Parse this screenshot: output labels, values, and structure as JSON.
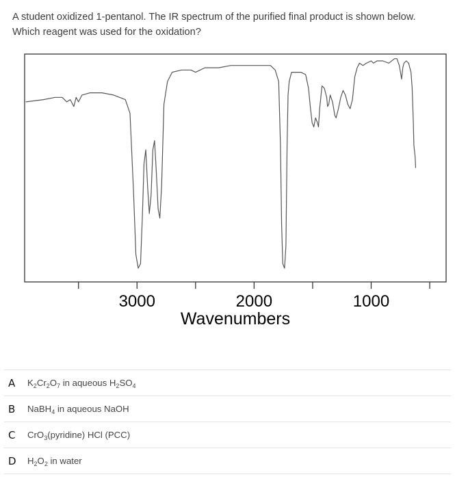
{
  "question": {
    "line1": "A student oxidized 1-pentanol. The IR spectrum of the purified final product is shown below.",
    "line2": "Which reagent was used for the oxidation?"
  },
  "options": [
    {
      "letter": "A",
      "parts": [
        [
          "K",
          ""
        ],
        [
          "2",
          "sub"
        ],
        [
          "Cr",
          ""
        ],
        [
          "2",
          "sub"
        ],
        [
          "O",
          ""
        ],
        [
          "7",
          "sub"
        ],
        [
          " in aqueous H",
          ""
        ],
        [
          "2",
          "sub"
        ],
        [
          "SO",
          ""
        ],
        [
          "4",
          "sub"
        ]
      ]
    },
    {
      "letter": "B",
      "parts": [
        [
          "NaBH",
          ""
        ],
        [
          "4",
          "sub"
        ],
        [
          " in aqueous NaOH",
          ""
        ]
      ]
    },
    {
      "letter": "C",
      "parts": [
        [
          "CrO",
          ""
        ],
        [
          "3",
          "sub"
        ],
        [
          "(pyridine) HCl (PCC)",
          ""
        ]
      ]
    },
    {
      "letter": "D",
      "parts": [
        [
          "H",
          ""
        ],
        [
          "2",
          "sub"
        ],
        [
          "O",
          ""
        ],
        [
          "2",
          "sub"
        ],
        [
          " in water",
          ""
        ]
      ]
    }
  ],
  "chart_data": {
    "type": "line",
    "title": "",
    "xlabel": "Wavenumbers",
    "ylabel": "",
    "x_axis": "reversed",
    "xlim": [
      3960,
      360
    ],
    "ylim": [
      0,
      100
    ],
    "x_ticks": [
      3500,
      3000,
      2500,
      2000,
      1500,
      1000,
      500
    ],
    "x_tick_labels": [
      {
        "value": 3000,
        "label": "3000"
      },
      {
        "value": 2000,
        "label": "2000"
      },
      {
        "value": 1000,
        "label": "1000"
      }
    ],
    "grid": false,
    "series": [
      {
        "name": "",
        "points": [
          [
            3950,
            79
          ],
          [
            3800,
            80
          ],
          [
            3700,
            81
          ],
          [
            3640,
            81
          ],
          [
            3600,
            79
          ],
          [
            3570,
            80
          ],
          [
            3540,
            77
          ],
          [
            3520,
            81
          ],
          [
            3500,
            79
          ],
          [
            3470,
            82
          ],
          [
            3400,
            83
          ],
          [
            3300,
            83
          ],
          [
            3200,
            82
          ],
          [
            3100,
            80
          ],
          [
            3060,
            74
          ],
          [
            3030,
            40
          ],
          [
            3010,
            12
          ],
          [
            2990,
            6
          ],
          [
            2970,
            8
          ],
          [
            2955,
            28
          ],
          [
            2940,
            52
          ],
          [
            2925,
            58
          ],
          [
            2910,
            42
          ],
          [
            2895,
            30
          ],
          [
            2880,
            38
          ],
          [
            2865,
            58
          ],
          [
            2850,
            62
          ],
          [
            2835,
            48
          ],
          [
            2820,
            32
          ],
          [
            2805,
            28
          ],
          [
            2790,
            42
          ],
          [
            2770,
            78
          ],
          [
            2740,
            88
          ],
          [
            2700,
            92
          ],
          [
            2620,
            93
          ],
          [
            2540,
            93
          ],
          [
            2500,
            92
          ],
          [
            2420,
            94
          ],
          [
            2300,
            94
          ],
          [
            2200,
            95
          ],
          [
            2100,
            95
          ],
          [
            2000,
            95
          ],
          [
            1900,
            95
          ],
          [
            1860,
            95
          ],
          [
            1820,
            93
          ],
          [
            1790,
            88
          ],
          [
            1775,
            60
          ],
          [
            1765,
            25
          ],
          [
            1755,
            8
          ],
          [
            1740,
            6
          ],
          [
            1728,
            16
          ],
          [
            1718,
            60
          ],
          [
            1710,
            82
          ],
          [
            1700,
            88
          ],
          [
            1680,
            92
          ],
          [
            1640,
            92
          ],
          [
            1600,
            92
          ],
          [
            1560,
            91
          ],
          [
            1535,
            85
          ],
          [
            1520,
            77
          ],
          [
            1505,
            70
          ],
          [
            1490,
            68
          ],
          [
            1475,
            72
          ],
          [
            1460,
            70
          ],
          [
            1450,
            68
          ],
          [
            1440,
            76
          ],
          [
            1420,
            86
          ],
          [
            1400,
            85
          ],
          [
            1380,
            81
          ],
          [
            1372,
            77
          ],
          [
            1362,
            78
          ],
          [
            1350,
            82
          ],
          [
            1330,
            79
          ],
          [
            1310,
            73
          ],
          [
            1300,
            72
          ],
          [
            1280,
            76
          ],
          [
            1260,
            81
          ],
          [
            1240,
            84
          ],
          [
            1220,
            82
          ],
          [
            1200,
            78
          ],
          [
            1180,
            76
          ],
          [
            1160,
            80
          ],
          [
            1140,
            90
          ],
          [
            1120,
            94
          ],
          [
            1100,
            96
          ],
          [
            1070,
            95
          ],
          [
            1040,
            96
          ],
          [
            1000,
            97
          ],
          [
            980,
            96
          ],
          [
            950,
            97
          ],
          [
            900,
            97
          ],
          [
            850,
            96
          ],
          [
            800,
            98
          ],
          [
            780,
            98
          ],
          [
            760,
            95
          ],
          [
            750,
            92
          ],
          [
            740,
            89
          ],
          [
            730,
            94
          ],
          [
            720,
            96
          ],
          [
            700,
            97
          ],
          [
            680,
            96
          ],
          [
            660,
            92
          ],
          [
            650,
            85
          ],
          [
            640,
            70
          ],
          [
            635,
            60
          ],
          [
            625,
            55
          ],
          [
            620,
            50
          ]
        ]
      }
    ]
  }
}
